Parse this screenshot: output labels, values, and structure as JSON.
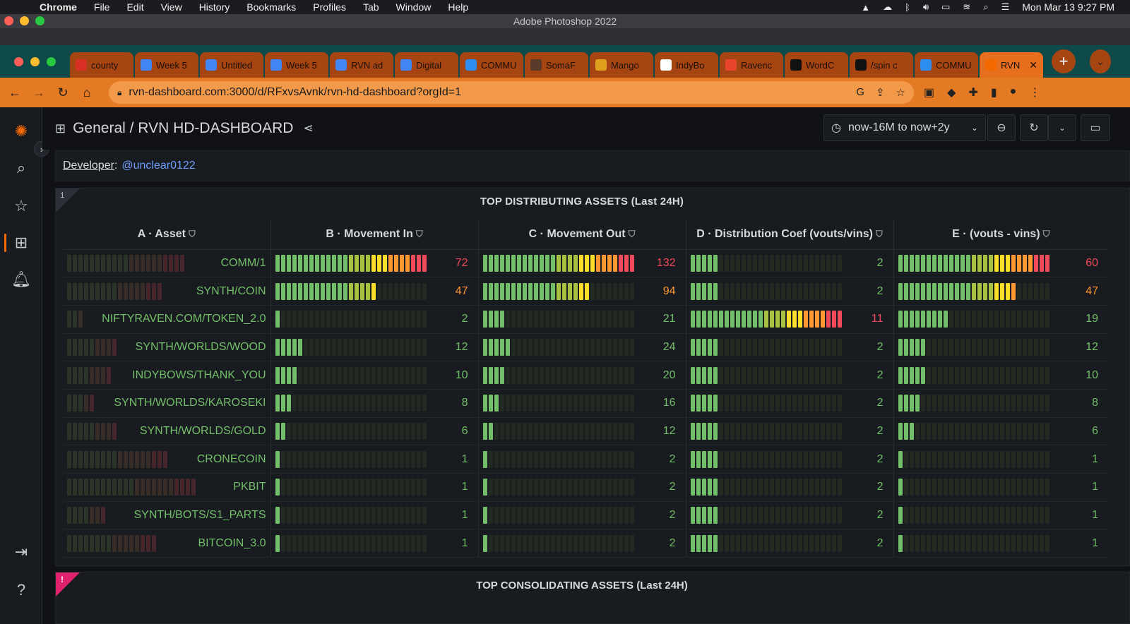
{
  "menubar": {
    "app": "Chrome",
    "items": [
      "File",
      "Edit",
      "View",
      "History",
      "Bookmarks",
      "Profiles",
      "Tab",
      "Window",
      "Help"
    ],
    "clock": "Mon Mar 13  9:27 PM"
  },
  "window": {
    "title": "Adobe Photoshop 2022"
  },
  "tabs": [
    {
      "label": "county",
      "icon": "gmail-icon",
      "color": "#d93025"
    },
    {
      "label": "Week 5",
      "icon": "docs-icon",
      "color": "#4285f4"
    },
    {
      "label": "Untitled",
      "icon": "docs-icon",
      "color": "#4285f4"
    },
    {
      "label": "Week 5",
      "icon": "docs-icon",
      "color": "#4285f4"
    },
    {
      "label": "RVN ad",
      "icon": "docs-icon",
      "color": "#4285f4"
    },
    {
      "label": "Digital",
      "icon": "docs-icon",
      "color": "#4285f4"
    },
    {
      "label": "COMMU",
      "icon": "comm-icon",
      "color": "#2d8cf0"
    },
    {
      "label": "SomaF",
      "icon": "soma-icon",
      "color": "#5a3a2a"
    },
    {
      "label": "Mango",
      "icon": "mango-icon",
      "color": "#e0a020"
    },
    {
      "label": "IndyBo",
      "icon": "globe-icon",
      "color": "#ffffff"
    },
    {
      "label": "Ravenc",
      "icon": "raven-icon",
      "color": "#e8452c"
    },
    {
      "label": "WordC",
      "icon": "wordpress-icon",
      "color": "#111111"
    },
    {
      "label": "/spin c",
      "icon": "spin-icon",
      "color": "#111111"
    },
    {
      "label": "COMMU",
      "icon": "comm-icon",
      "color": "#2d8cf0"
    },
    {
      "label": "RVN",
      "icon": "grafana-icon",
      "color": "#f46800",
      "active": true
    }
  ],
  "address": {
    "url": "rvn-dashboard.com:3000/d/RFxvsAvnk/rvn-hd-dashboard?orgId=1"
  },
  "header": {
    "breadcrumb": "General / RVN HD-DASHBOARD",
    "time_range": "now-16M to now+2y"
  },
  "developer": {
    "label": "Developer",
    "handle": "@unclear0122"
  },
  "panel": {
    "title": "TOP DISTRIBUTING ASSETS (Last 24H)",
    "columns": [
      "A · Asset",
      "B · Movement In",
      "C · Movement Out",
      "D · Distribution Coef (vouts/vins)",
      "E · (vouts - vins)"
    ],
    "max": {
      "in": 72,
      "out": 132,
      "coef": 11,
      "diff": 60
    },
    "rows": [
      {
        "asset": "COMM/1",
        "in": 72,
        "out": 132,
        "coef": 2,
        "diff": 60
      },
      {
        "asset": "SYNTH/COIN",
        "in": 47,
        "out": 94,
        "coef": 2,
        "diff": 47
      },
      {
        "asset": "NIFTYRAVEN.COM/TOKEN_2.0",
        "in": 2,
        "out": 21,
        "coef": 11,
        "diff": 19
      },
      {
        "asset": "SYNTH/WORLDS/WOOD",
        "in": 12,
        "out": 24,
        "coef": 2,
        "diff": 12
      },
      {
        "asset": "INDYBOWS/THANK_YOU",
        "in": 10,
        "out": 20,
        "coef": 2,
        "diff": 10
      },
      {
        "asset": "SYNTH/WORLDS/KAROSEKI",
        "in": 8,
        "out": 16,
        "coef": 2,
        "diff": 8
      },
      {
        "asset": "SYNTH/WORLDS/GOLD",
        "in": 6,
        "out": 12,
        "coef": 2,
        "diff": 6
      },
      {
        "asset": "CRONECOIN",
        "in": 1,
        "out": 2,
        "coef": 2,
        "diff": 1
      },
      {
        "asset": "PKBIT",
        "in": 1,
        "out": 2,
        "coef": 2,
        "diff": 1
      },
      {
        "asset": "SYNTH/BOTS/S1_PARTS",
        "in": 1,
        "out": 2,
        "coef": 2,
        "diff": 1
      },
      {
        "asset": "BITCOIN_3.0",
        "in": 1,
        "out": 2,
        "coef": 2,
        "diff": 1
      }
    ]
  },
  "panel2": {
    "title": "TOP CONSOLIDATING ASSETS (Last 24H)"
  },
  "colors": {
    "accent": "#f66a0a",
    "link": "#6e9fff",
    "green": "#73bf69",
    "yellow": "#fade2a",
    "orange": "#ff9830",
    "red": "#f2495c"
  }
}
